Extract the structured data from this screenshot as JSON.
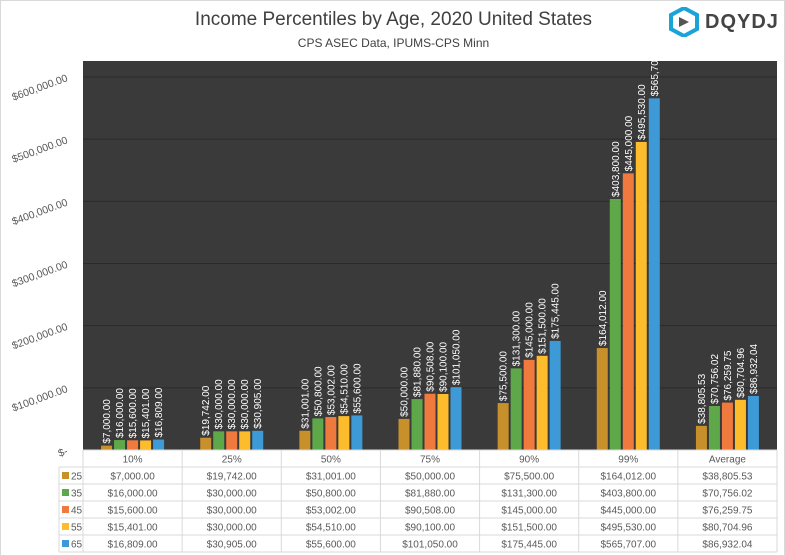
{
  "logo": {
    "text": "DQYDJ"
  },
  "chart_data": {
    "type": "bar",
    "title": "Income Percentiles by Age, 2020 United States",
    "subtitle": "CPS ASEC Data, IPUMS-CPS Minn",
    "categories": [
      "10%",
      "25%",
      "50%",
      "75%",
      "90%",
      "99%",
      "Average"
    ],
    "ylim": [
      0,
      600000
    ],
    "yticks": [
      0,
      100000,
      200000,
      300000,
      400000,
      500000,
      600000
    ],
    "ytick_labels": [
      "$-",
      "$100,000.00",
      "$200,000.00",
      "$300,000.00",
      "$400,000.00",
      "$500,000.00",
      "$600,000.00"
    ],
    "legend_placement": "data-table",
    "series": [
      {
        "name": "25",
        "color": "#c8902a",
        "values": [
          7000,
          19742,
          31001,
          50000,
          75500,
          164012,
          38805.53
        ],
        "labels": [
          "$7,000.00",
          "$19,742.00",
          "$31,001.00",
          "$50,000.00",
          "$75,500.00",
          "$164,012.00",
          "$38,805.53"
        ]
      },
      {
        "name": "35",
        "color": "#5fa84a",
        "values": [
          16000,
          30000,
          50800,
          81880,
          131300,
          403800,
          70756.02
        ],
        "labels": [
          "$16,000.00",
          "$30,000.00",
          "$50,800.00",
          "$81,880.00",
          "$131,300.00",
          "$403,800.00",
          "$70,756.02"
        ]
      },
      {
        "name": "45",
        "color": "#f07a3e",
        "values": [
          15600,
          30000,
          53002,
          90508,
          145000,
          445000,
          76259.75
        ],
        "labels": [
          "$15,600.00",
          "$30,000.00",
          "$53,002.00",
          "$90,508.00",
          "$145,000.00",
          "$445,000.00",
          "$76,259.75"
        ]
      },
      {
        "name": "55",
        "color": "#fcbc2c",
        "values": [
          15401,
          30000,
          54510,
          90100,
          151500,
          495530,
          80704.96
        ],
        "labels": [
          "$15,401.00",
          "$30,000.00",
          "$54,510.00",
          "$90,100.00",
          "$151,500.00",
          "$495,530.00",
          "$80,704.96"
        ]
      },
      {
        "name": "65",
        "color": "#3d9ad6",
        "values": [
          16809,
          30905,
          55600,
          101050,
          175445,
          565707,
          86932.04
        ],
        "labels": [
          "$16,809.00",
          "$30,905.00",
          "$55,600.00",
          "$101,050.00",
          "$175,445.00",
          "$565,707.00",
          "$86,932.04"
        ]
      }
    ]
  }
}
